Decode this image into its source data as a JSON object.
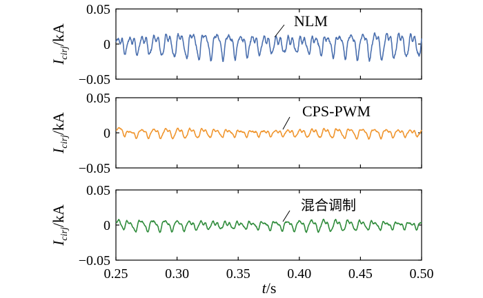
{
  "chart_data": {
    "type": "line",
    "shared_x": {
      "xlim": [
        0.25,
        0.5
      ],
      "xticks": [
        "0.25",
        "0.30",
        "0.35",
        "0.40",
        "0.45",
        "0.50"
      ],
      "xlabel_italic": "t",
      "xlabel_unit": "/s"
    },
    "subplots": [
      {
        "ylabel_main": "I",
        "ylabel_sub": "cirj",
        "ylabel_unit": "/kA",
        "ylim": [
          -0.05,
          0.05
        ],
        "yticks": [
          "0.05",
          "0",
          "−0.05"
        ],
        "series": [
          {
            "name": "NLM",
            "color": "#4a6fae",
            "freq_hz": 100,
            "amplitude_kA": 0.016,
            "t_start": 0.25,
            "t_end": 0.5
          }
        ],
        "annotation": {
          "text": "NLM",
          "x": 0.383,
          "y": 0.012
        }
      },
      {
        "ylabel_main": "I",
        "ylabel_sub": "cirj",
        "ylabel_unit": "/kA",
        "ylim": [
          -0.05,
          0.05
        ],
        "yticks": [
          "0.05",
          "0",
          "−0.05"
        ],
        "series": [
          {
            "name": "CPS-PWM",
            "color": "#f0952d",
            "freq_hz": 100,
            "amplitude_kA": 0.006,
            "t_start": 0.25,
            "t_end": 0.5
          }
        ],
        "annotation": {
          "text": "CPS-PWM",
          "x": 0.384,
          "y": 0.004
        }
      },
      {
        "ylabel_main": "I",
        "ylabel_sub": "cirj",
        "ylabel_unit": "/kA",
        "ylim": [
          -0.05,
          0.05
        ],
        "yticks": [
          "0.05",
          "0",
          "−0.05"
        ],
        "series": [
          {
            "name": "混合调制",
            "color": "#2e8b3a",
            "freq_hz": 100,
            "amplitude_kA": 0.007,
            "t_start": 0.25,
            "t_end": 0.5
          }
        ],
        "annotation": {
          "text": "混合调制",
          "x": 0.384,
          "y": 0.005
        }
      }
    ]
  }
}
